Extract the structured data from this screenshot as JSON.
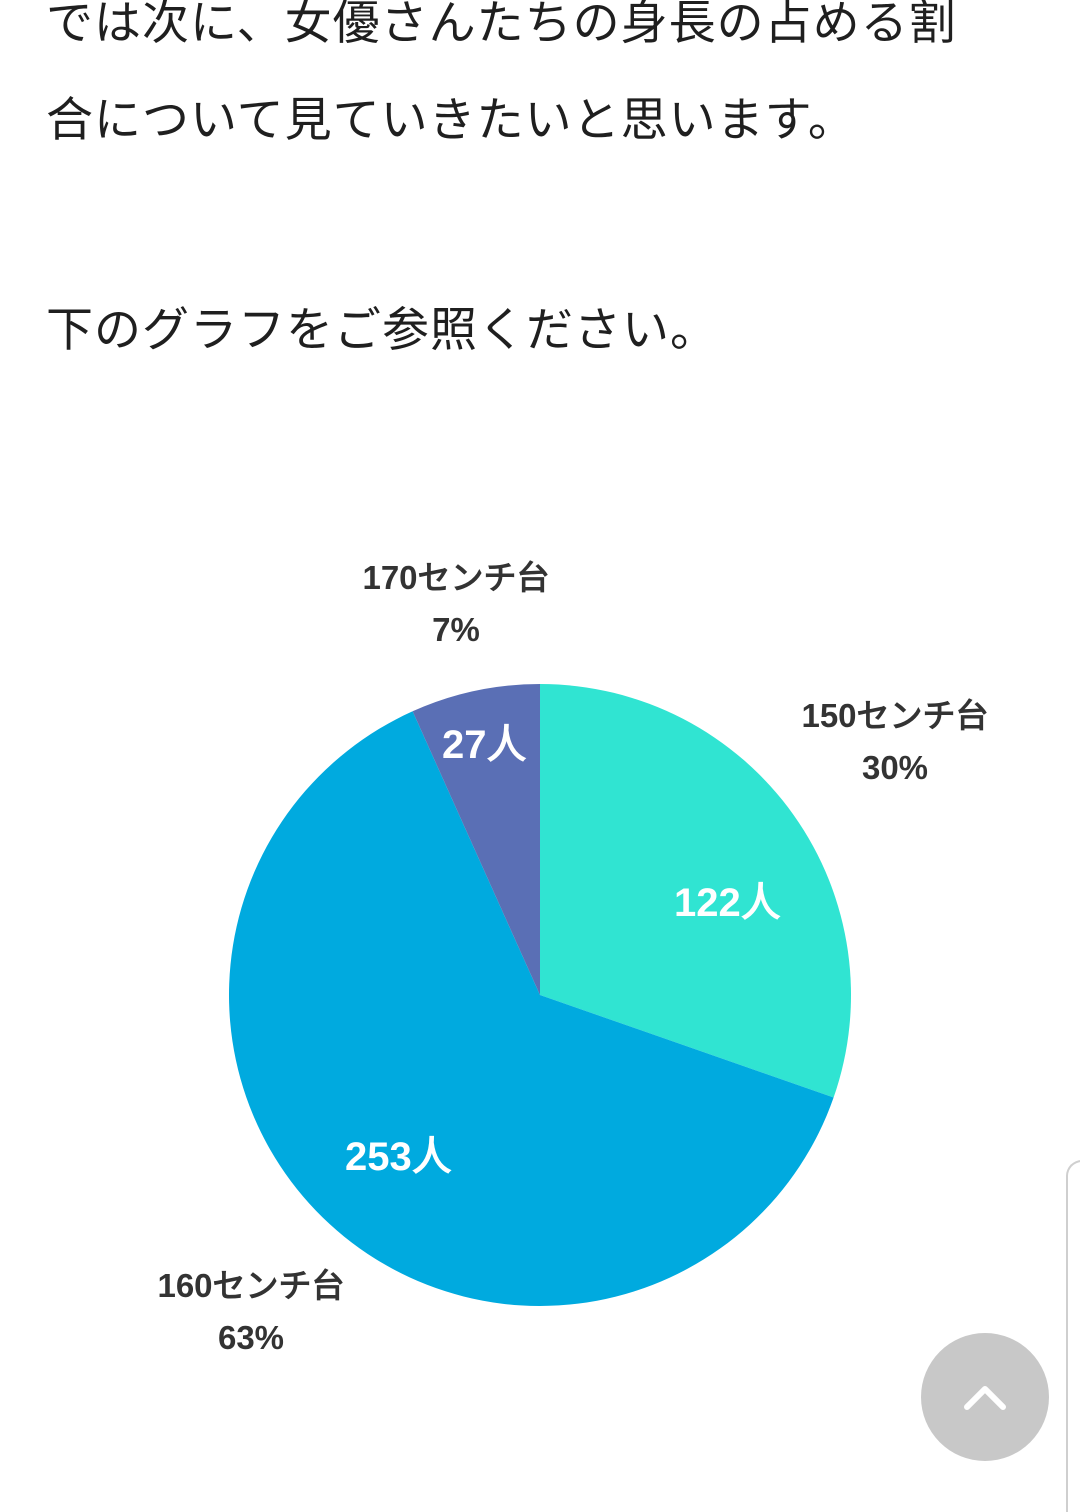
{
  "article": {
    "paragraph_1_line_1": "では次に、女優さんたちの身長の占める割",
    "paragraph_1_line_2": "合について見ていきたいと思います。",
    "paragraph_2": "下のグラフをご参照ください。"
  },
  "chart_data": {
    "type": "pie",
    "title": "",
    "start_angle_deg": 0,
    "direction": "clockwise",
    "slices": [
      {
        "category": "150センチ台",
        "value": 122,
        "value_label": "122人",
        "percent_label": "30%",
        "color": "#30e4d2"
      },
      {
        "category": "160センチ台",
        "value": 253,
        "value_label": "253人",
        "percent_label": "63%",
        "color": "#00aadf"
      },
      {
        "category": "170センチ台",
        "value": 27,
        "value_label": "27人",
        "percent_label": "7%",
        "color": "#5a6fb5"
      }
    ]
  },
  "ui": {
    "scroll_top_icon": "chevron-up-icon",
    "scroll_top_color": "#c8c8c8"
  }
}
